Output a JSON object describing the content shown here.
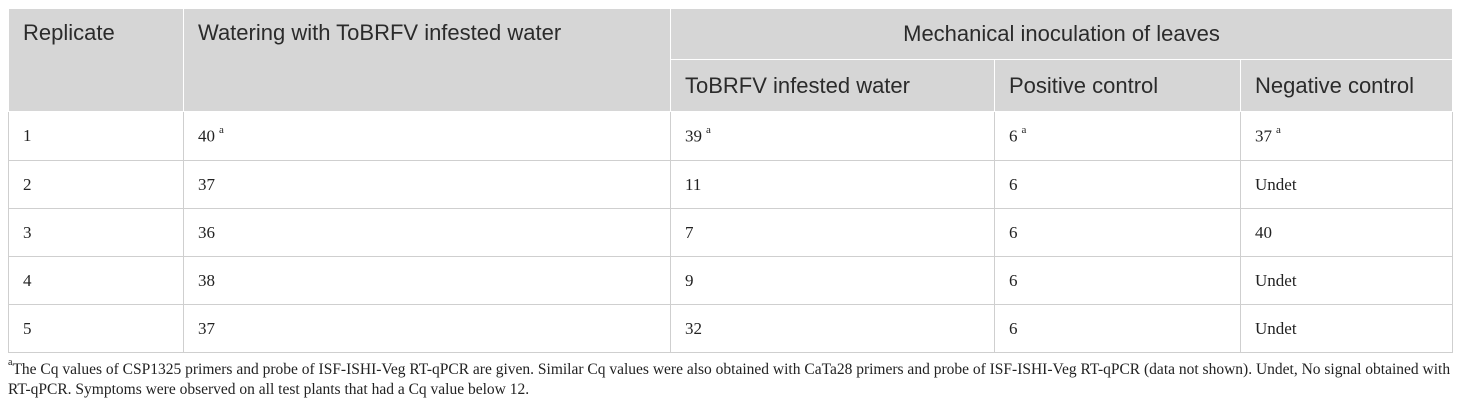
{
  "table": {
    "headers": {
      "replicate": "Replicate",
      "watering": "Watering with ToBRFV infested water",
      "mechanical": "Mechanical inoculation of leaves",
      "sub": [
        "ToBRFV infested water",
        "Positive control",
        "Negative control"
      ]
    },
    "rows": [
      [
        "1",
        "40",
        "39",
        "6",
        "37"
      ],
      [
        "2",
        "37",
        "11",
        "6",
        "Undet"
      ],
      [
        "3",
        "36",
        "7",
        "6",
        "40"
      ],
      [
        "4",
        "38",
        "9",
        "6",
        "Undet"
      ],
      [
        "5",
        "37",
        "32",
        "6",
        "Undet"
      ]
    ],
    "first_row_marker": "a"
  },
  "footnote": {
    "marker": "a",
    "text": "The Cq values of CSP1325 primers and probe of ISF-ISHI-Veg RT-qPCR are given. Similar Cq values were also obtained with CaTa28 primers and probe of ISF-ISHI-Veg RT-qPCR (data not shown). Undet, No signal obtained with RT-qPCR. Symptoms were observed on all test plants that had a Cq value below 12."
  }
}
